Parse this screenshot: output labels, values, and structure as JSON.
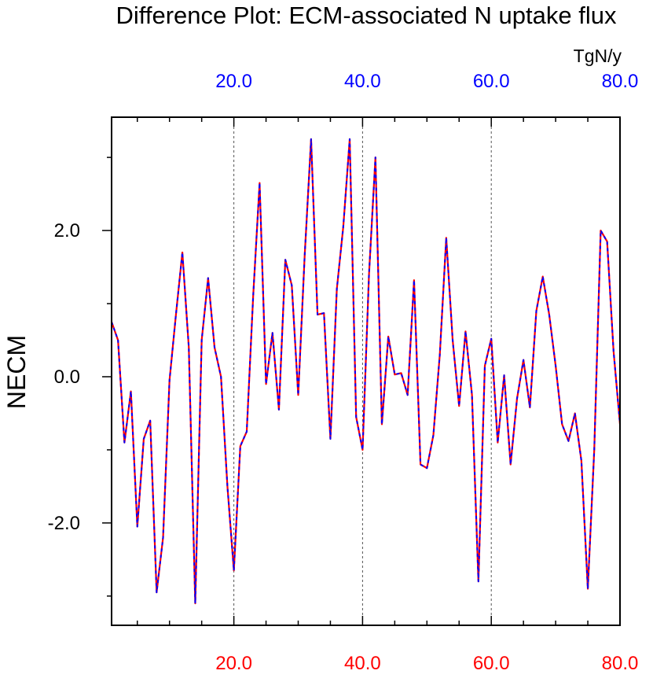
{
  "chart_data": {
    "type": "line",
    "title": "Difference Plot: ECM-associated N uptake flux",
    "units_label": "TgN/y",
    "ylabel": "NECM",
    "xlim": [
      1,
      80
    ],
    "ylim": [
      -3.4,
      3.55
    ],
    "grid": "vertical dashed at major x ticks",
    "x_major_ticks": [
      20,
      40,
      60,
      80
    ],
    "x_minor_ticks": [
      5,
      10,
      15,
      25,
      30,
      35,
      45,
      50,
      55,
      65,
      70,
      75
    ],
    "x_tick_labels_top": [
      "20.0",
      "40.0",
      "60.0",
      "80.0"
    ],
    "x_tick_labels_bottom": [
      "20.0",
      "40.0",
      "60.0",
      "80.0"
    ],
    "y_major_ticks": [
      -2,
      0,
      2
    ],
    "y_minor_ticks": [
      -3,
      -1,
      1,
      3
    ],
    "y_tick_labels": [
      "-2.0",
      "0.0",
      "2.0"
    ],
    "colors": {
      "top_axis": "#0000ff",
      "bottom_axis": "#ff0000",
      "series_a": "#ff0000",
      "series_b": "#0000ff"
    },
    "series": [
      {
        "name": "series-red",
        "style": "solid",
        "x": [
          1,
          2,
          3,
          4,
          5,
          6,
          7,
          8,
          9,
          10,
          11,
          12,
          13,
          14,
          15,
          16,
          17,
          18,
          19,
          20,
          21,
          22,
          23,
          24,
          25,
          26,
          27,
          28,
          29,
          30,
          31,
          32,
          33,
          34,
          35,
          36,
          37,
          38,
          39,
          40,
          41,
          42,
          43,
          44,
          45,
          46,
          47,
          48,
          49,
          50,
          51,
          52,
          53,
          54,
          55,
          56,
          57,
          58,
          59,
          60,
          61,
          62,
          63,
          64,
          65,
          66,
          67,
          68,
          69,
          70,
          71,
          72,
          73,
          74,
          75,
          76,
          77,
          78,
          79,
          80
        ],
        "values": [
          0.75,
          0.5,
          -0.9,
          -0.2,
          -2.05,
          -0.85,
          -0.6,
          -2.95,
          -2.2,
          -0.05,
          0.85,
          1.7,
          0.4,
          -3.1,
          0.5,
          1.35,
          0.4,
          0.0,
          -1.5,
          -2.65,
          -0.95,
          -0.75,
          1.1,
          2.65,
          -0.1,
          0.6,
          -0.45,
          1.6,
          1.25,
          -0.25,
          1.65,
          3.25,
          0.85,
          0.87,
          -0.85,
          1.2,
          2.05,
          3.25,
          -0.55,
          -1.0,
          1.4,
          3.0,
          -0.65,
          0.55,
          0.03,
          0.05,
          -0.25,
          1.32,
          -1.2,
          -1.25,
          -0.8,
          0.3,
          1.9,
          0.5,
          -0.4,
          0.62,
          -0.25,
          -2.8,
          0.15,
          0.52,
          -0.9,
          0.02,
          -1.2,
          -0.3,
          0.23,
          -0.42,
          0.9,
          1.37,
          0.85,
          0.15,
          -0.65,
          -0.88,
          -0.5,
          -1.15,
          -2.9,
          -1.0,
          2.0,
          1.85,
          0.35,
          -0.65
        ]
      },
      {
        "name": "series-blue",
        "style": "dashed",
        "x": [
          1,
          2,
          3,
          4,
          5,
          6,
          7,
          8,
          9,
          10,
          11,
          12,
          13,
          14,
          15,
          16,
          17,
          18,
          19,
          20,
          21,
          22,
          23,
          24,
          25,
          26,
          27,
          28,
          29,
          30,
          31,
          32,
          33,
          34,
          35,
          36,
          37,
          38,
          39,
          40,
          41,
          42,
          43,
          44,
          45,
          46,
          47,
          48,
          49,
          50,
          51,
          52,
          53,
          54,
          55,
          56,
          57,
          58,
          59,
          60,
          61,
          62,
          63,
          64,
          65,
          66,
          67,
          68,
          69,
          70,
          71,
          72,
          73,
          74,
          75,
          76,
          77,
          78,
          79,
          80
        ],
        "values": [
          0.75,
          0.5,
          -0.9,
          -0.2,
          -2.05,
          -0.85,
          -0.6,
          -2.95,
          -2.2,
          -0.05,
          0.85,
          1.7,
          0.4,
          -3.1,
          0.5,
          1.35,
          0.4,
          0.0,
          -1.5,
          -2.65,
          -0.95,
          -0.75,
          1.1,
          2.65,
          -0.1,
          0.6,
          -0.45,
          1.6,
          1.25,
          -0.25,
          1.65,
          3.25,
          0.85,
          0.87,
          -0.85,
          1.2,
          2.05,
          3.25,
          -0.55,
          -1.0,
          1.4,
          3.0,
          -0.65,
          0.55,
          0.03,
          0.05,
          -0.25,
          1.32,
          -1.2,
          -1.25,
          -0.8,
          0.3,
          1.9,
          0.5,
          -0.4,
          0.62,
          -0.25,
          -2.8,
          0.15,
          0.52,
          -0.9,
          0.02,
          -1.2,
          -0.3,
          0.23,
          -0.42,
          0.9,
          1.37,
          0.85,
          0.15,
          -0.65,
          -0.88,
          -0.5,
          -1.15,
          -2.9,
          -1.0,
          2.0,
          1.85,
          0.35,
          -0.65
        ]
      }
    ]
  }
}
